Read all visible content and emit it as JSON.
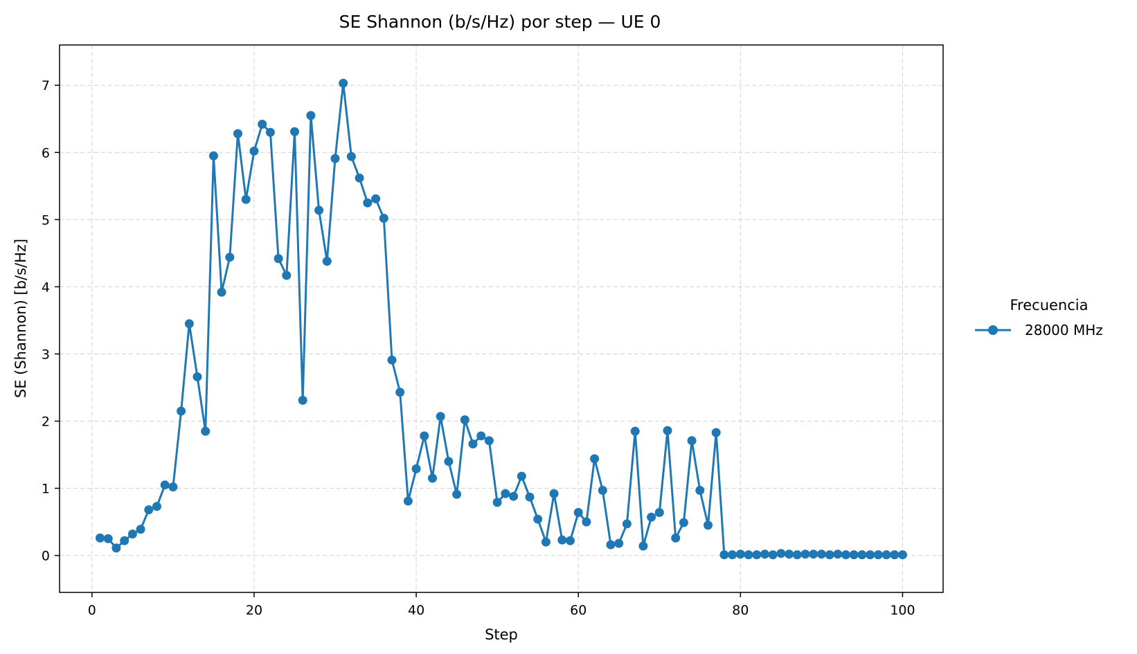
{
  "chart_data": {
    "type": "line",
    "title": "SE Shannon (b/s/Hz) por step — UE 0",
    "xlabel": "Step",
    "ylabel": "SE (Shannon) [b/s/Hz]",
    "xlim": [
      -4,
      105
    ],
    "ylim": [
      -0.55,
      7.6
    ],
    "xticks": [
      0,
      20,
      40,
      60,
      80,
      100
    ],
    "yticks": [
      0,
      1,
      2,
      3,
      4,
      5,
      6,
      7
    ],
    "grid": true,
    "legend": {
      "title": "Frecuencia",
      "placement": "outside-right"
    },
    "x": [
      1,
      2,
      3,
      4,
      5,
      6,
      7,
      8,
      9,
      10,
      11,
      12,
      13,
      14,
      15,
      16,
      17,
      18,
      19,
      20,
      21,
      22,
      23,
      24,
      25,
      26,
      27,
      28,
      29,
      30,
      31,
      32,
      33,
      34,
      35,
      36,
      37,
      38,
      39,
      40,
      41,
      42,
      43,
      44,
      45,
      46,
      47,
      48,
      49,
      50,
      51,
      52,
      53,
      54,
      55,
      56,
      57,
      58,
      59,
      60,
      61,
      62,
      63,
      64,
      65,
      66,
      67,
      68,
      69,
      70,
      71,
      72,
      73,
      74,
      75,
      76,
      77,
      78,
      79,
      80,
      81,
      82,
      83,
      84,
      85,
      86,
      87,
      88,
      89,
      90,
      91,
      92,
      93,
      94,
      95,
      96,
      97,
      98,
      99,
      100
    ],
    "series": [
      {
        "name": "28000 MHz",
        "color": "#1f77b4",
        "values": [
          0.26,
          0.25,
          0.11,
          0.22,
          0.32,
          0.39,
          0.68,
          0.73,
          1.05,
          1.02,
          2.15,
          3.45,
          2.66,
          1.85,
          5.95,
          3.92,
          4.44,
          6.28,
          5.3,
          6.02,
          6.42,
          6.3,
          4.42,
          4.17,
          6.31,
          2.31,
          6.55,
          5.14,
          4.38,
          5.91,
          7.03,
          5.94,
          5.62,
          5.25,
          5.31,
          5.02,
          2.91,
          2.43,
          0.81,
          1.29,
          1.78,
          1.15,
          2.07,
          1.4,
          0.91,
          2.02,
          1.66,
          1.78,
          1.71,
          0.79,
          0.92,
          0.88,
          1.18,
          0.87,
          0.54,
          0.2,
          0.92,
          0.23,
          0.22,
          0.64,
          0.5,
          1.44,
          0.97,
          0.16,
          0.18,
          0.47,
          1.85,
          0.14,
          0.57,
          0.64,
          1.86,
          0.26,
          0.49,
          1.71,
          0.97,
          0.45,
          1.83,
          0.01,
          0.01,
          0.02,
          0.01,
          0.01,
          0.02,
          0.01,
          0.03,
          0.02,
          0.01,
          0.02,
          0.02,
          0.02,
          0.01,
          0.02,
          0.01,
          0.01,
          0.01,
          0.01,
          0.01,
          0.01,
          0.01,
          0.01
        ]
      }
    ]
  }
}
